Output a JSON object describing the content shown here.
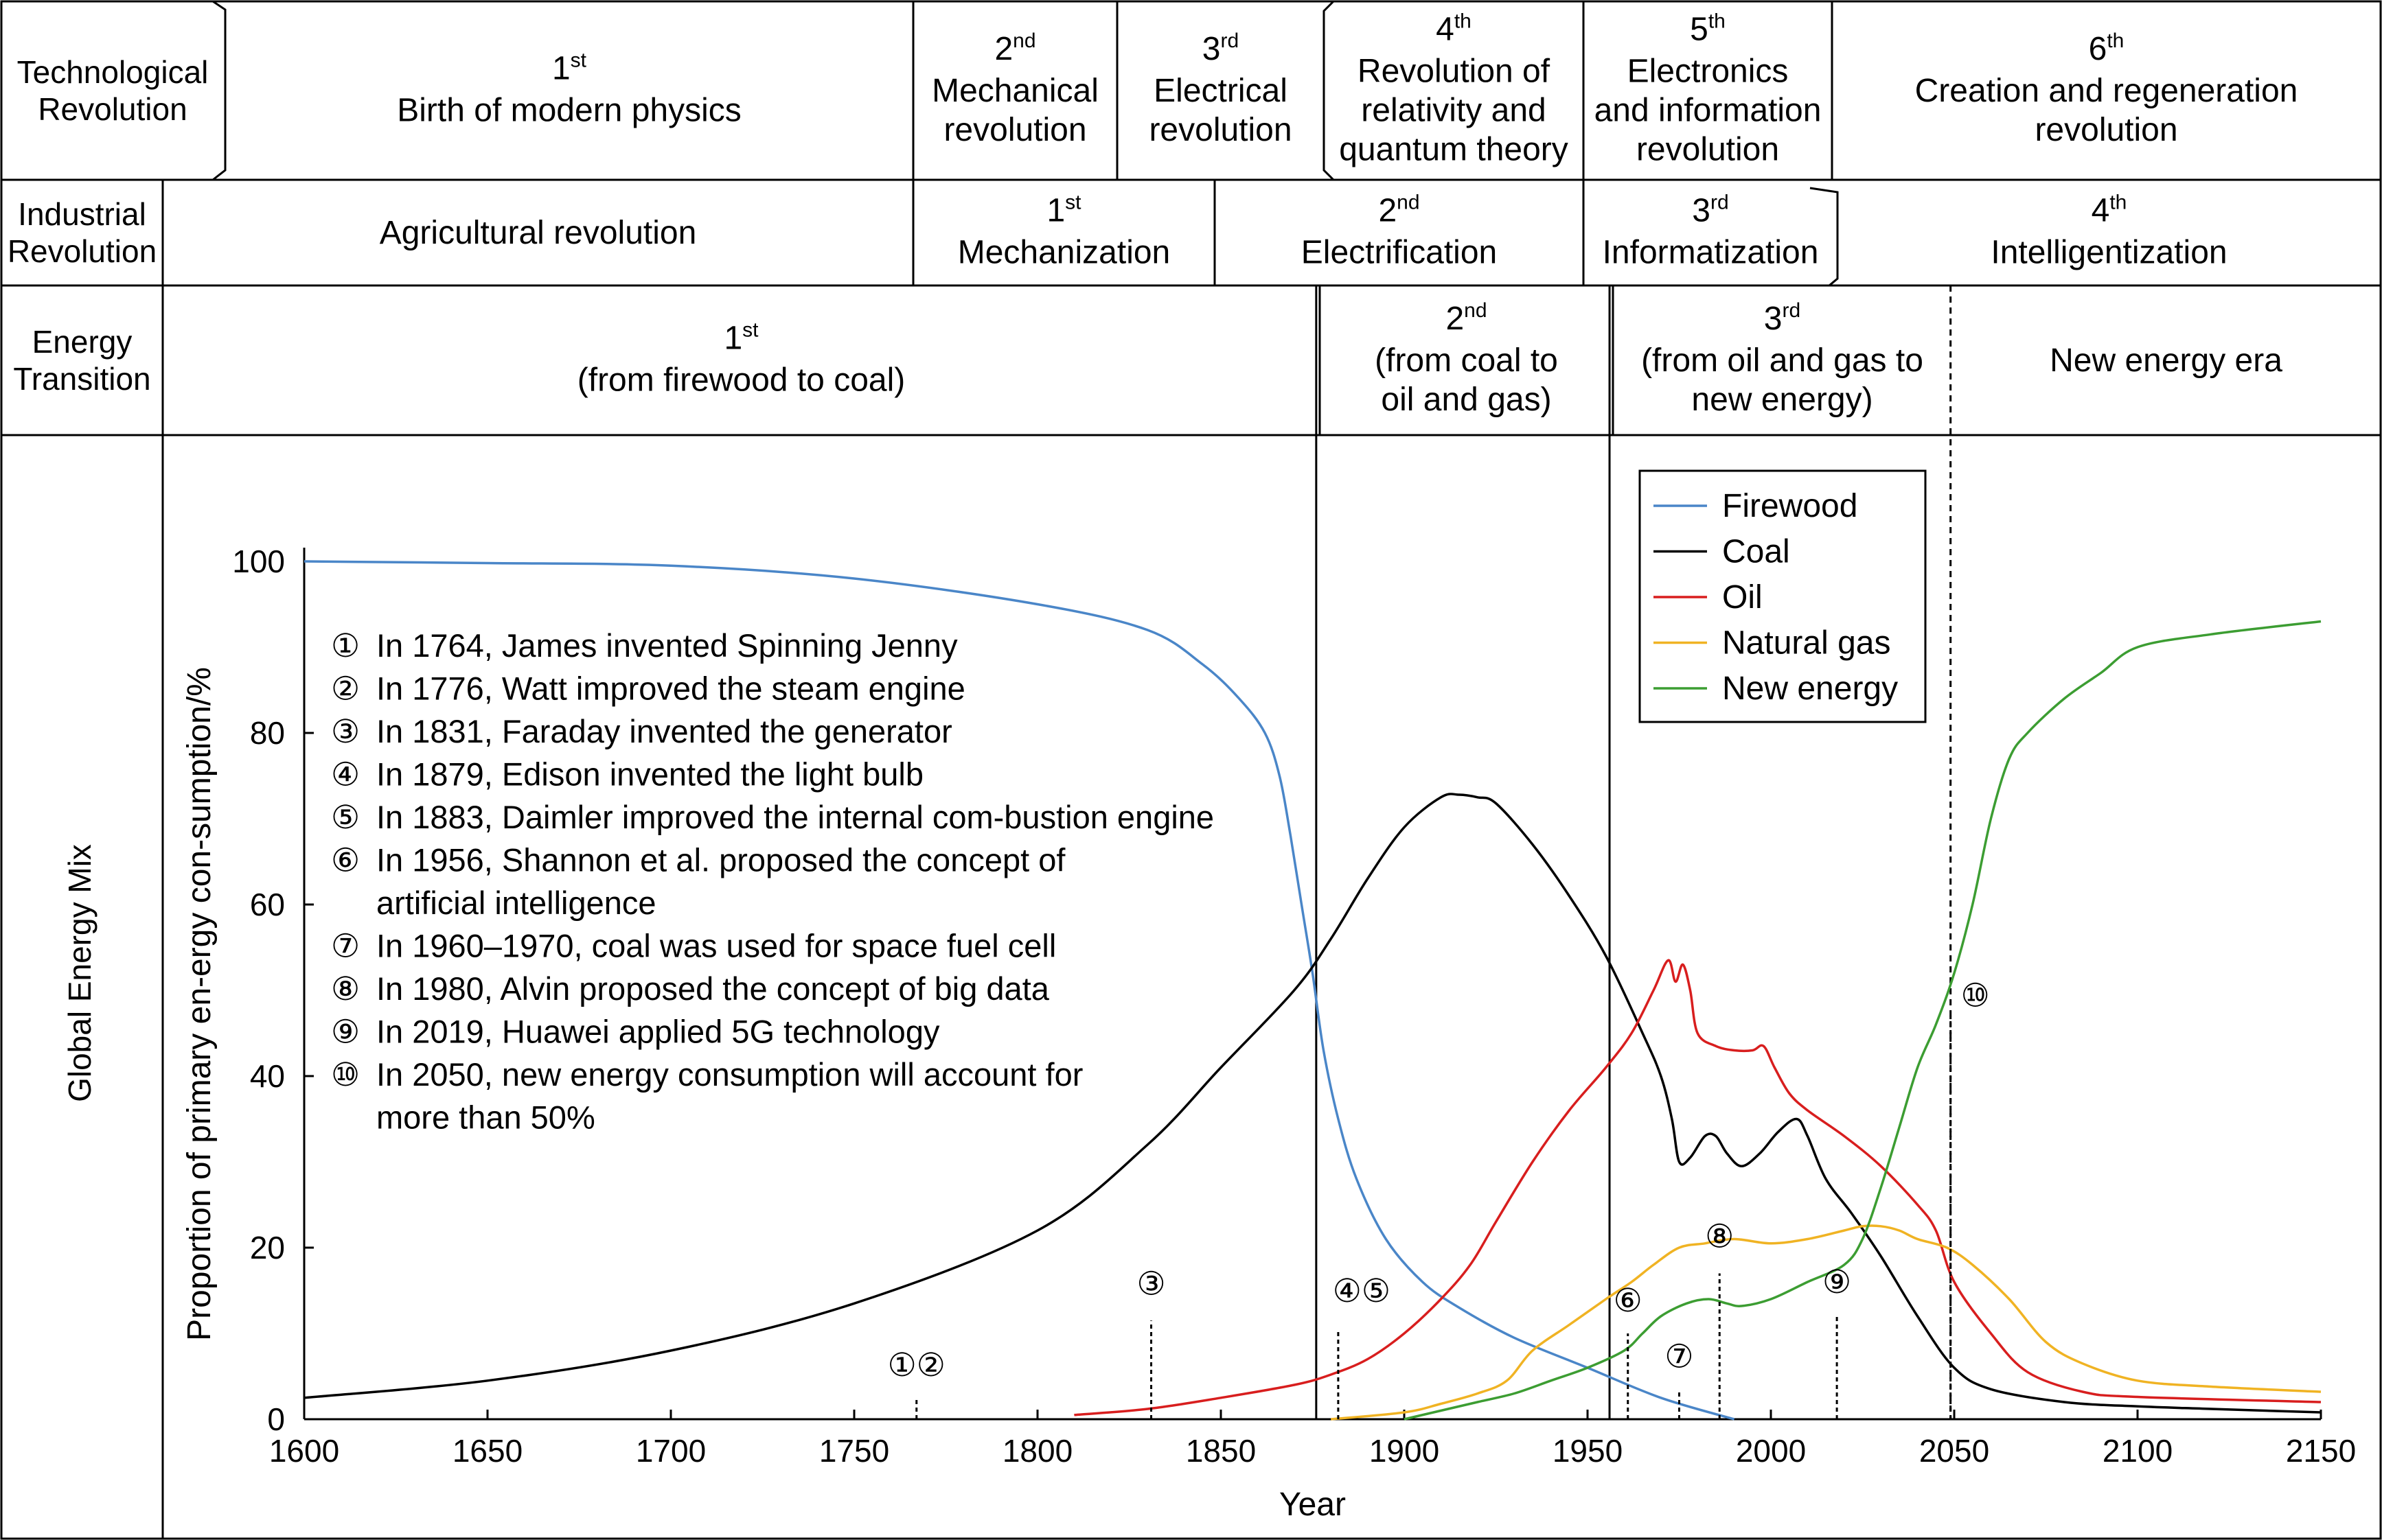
{
  "table": {
    "rows": [
      {
        "label": [
          "Technological",
          "Revolution"
        ],
        "cells": [
          {
            "ord": "1",
            "sup": "st",
            "lines": [
              "Birth of modern physics"
            ]
          },
          {
            "ord": "2",
            "sup": "nd",
            "lines": [
              "Mechanical",
              "revolution"
            ]
          },
          {
            "ord": "3",
            "sup": "rd",
            "lines": [
              "Electrical",
              "revolution"
            ]
          },
          {
            "ord": "4",
            "sup": "th",
            "lines": [
              "Revolution of",
              "relativity and",
              "quantum theory"
            ]
          },
          {
            "ord": "5",
            "sup": "th",
            "lines": [
              "Electronics",
              "and information",
              "revolution"
            ]
          },
          {
            "ord": "6",
            "sup": "th",
            "lines": [
              "Creation and regeneration",
              "revolution"
            ]
          }
        ]
      },
      {
        "label": [
          "Industrial",
          "Revolution"
        ],
        "cells": [
          {
            "ord": "",
            "sup": "",
            "lines": [
              "Agricultural revolution"
            ]
          },
          {
            "ord": "1",
            "sup": "st",
            "lines": [
              "Mechanization"
            ]
          },
          {
            "ord": "2",
            "sup": "nd",
            "lines": [
              "Electrification"
            ]
          },
          {
            "ord": "3",
            "sup": "rd",
            "lines": [
              "Informatization"
            ]
          },
          {
            "ord": "4",
            "sup": "th",
            "lines": [
              "Intelligentization"
            ]
          }
        ]
      },
      {
        "label": [
          "Energy",
          "Transition"
        ],
        "cells": [
          {
            "ord": "1",
            "sup": "st",
            "lines": [
              "(from firewood to coal)"
            ]
          },
          {
            "ord": "2",
            "sup": "nd",
            "lines": [
              "(from coal to",
              "oil and gas)"
            ]
          },
          {
            "ord": "3",
            "sup": "rd",
            "lines": [
              "(from oil and gas to",
              "new energy)"
            ]
          },
          {
            "ord": "",
            "sup": "",
            "lines": [
              "New energy era"
            ]
          }
        ]
      }
    ],
    "chart_row_label": "Global Energy Mix"
  },
  "chart_data": {
    "type": "line",
    "xlabel": "Year",
    "ylabel": "Proportion of primary en-ergy con-sumption/%",
    "xlim": [
      1600,
      2150
    ],
    "ylim": [
      0,
      100
    ],
    "xticks": [
      1600,
      1650,
      1700,
      1750,
      1800,
      1850,
      1900,
      1950,
      2000,
      2050,
      2100,
      2150
    ],
    "yticks": [
      0,
      20,
      40,
      60,
      80,
      100
    ],
    "vlines_solid": [
      1876,
      1956
    ],
    "vline_dashed": 2049,
    "series": [
      {
        "name": "Firewood",
        "color": "#4a86c8",
        "points": [
          [
            1600,
            100
          ],
          [
            1650,
            99.8
          ],
          [
            1700,
            99.5
          ],
          [
            1750,
            98
          ],
          [
            1800,
            95
          ],
          [
            1830,
            92
          ],
          [
            1845,
            88
          ],
          [
            1855,
            84
          ],
          [
            1862,
            80
          ],
          [
            1866,
            75
          ],
          [
            1869,
            68
          ],
          [
            1872,
            60
          ],
          [
            1875,
            52
          ],
          [
            1878,
            43
          ],
          [
            1882,
            35
          ],
          [
            1887,
            28
          ],
          [
            1895,
            21
          ],
          [
            1905,
            16
          ],
          [
            1915,
            13
          ],
          [
            1930,
            9.5
          ],
          [
            1950,
            6
          ],
          [
            1970,
            2.5
          ],
          [
            1990,
            0
          ]
        ]
      },
      {
        "name": "Coal",
        "color": "#000000",
        "points": [
          [
            1600,
            2.5
          ],
          [
            1650,
            4.5
          ],
          [
            1700,
            8
          ],
          [
            1750,
            13.5
          ],
          [
            1800,
            22
          ],
          [
            1830,
            32
          ],
          [
            1850,
            41
          ],
          [
            1870,
            50
          ],
          [
            1880,
            56
          ],
          [
            1890,
            63
          ],
          [
            1900,
            69
          ],
          [
            1910,
            72.5
          ],
          [
            1915,
            72.8
          ],
          [
            1920,
            72.5
          ],
          [
            1925,
            71.8
          ],
          [
            1935,
            67
          ],
          [
            1945,
            61
          ],
          [
            1955,
            54
          ],
          [
            1965,
            45
          ],
          [
            1970,
            40
          ],
          [
            1973,
            35
          ],
          [
            1975,
            30
          ],
          [
            1978,
            30.5
          ],
          [
            1982,
            33
          ],
          [
            1985,
            33
          ],
          [
            1988,
            31
          ],
          [
            1992,
            29.5
          ],
          [
            1997,
            31
          ],
          [
            2002,
            33.5
          ],
          [
            2007,
            35
          ],
          [
            2010,
            33
          ],
          [
            2015,
            28
          ],
          [
            2022,
            24
          ],
          [
            2030,
            19
          ],
          [
            2040,
            12
          ],
          [
            2050,
            6
          ],
          [
            2060,
            3.5
          ],
          [
            2080,
            2
          ],
          [
            2100,
            1.5
          ],
          [
            2120,
            1.2
          ],
          [
            2150,
            0.8
          ]
        ]
      },
      {
        "name": "Oil",
        "color": "#d81e1e",
        "points": [
          [
            1810,
            0.5
          ],
          [
            1830,
            1.2
          ],
          [
            1850,
            2.5
          ],
          [
            1870,
            4
          ],
          [
            1880,
            5.2
          ],
          [
            1890,
            7
          ],
          [
            1900,
            10
          ],
          [
            1910,
            14
          ],
          [
            1918,
            18
          ],
          [
            1925,
            23
          ],
          [
            1935,
            30
          ],
          [
            1945,
            36
          ],
          [
            1955,
            41
          ],
          [
            1962,
            45
          ],
          [
            1968,
            50
          ],
          [
            1972,
            53.5
          ],
          [
            1974,
            51
          ],
          [
            1976,
            53
          ],
          [
            1978,
            50
          ],
          [
            1980,
            45
          ],
          [
            1985,
            43.5
          ],
          [
            1990,
            43
          ],
          [
            1995,
            43
          ],
          [
            1998,
            43.5
          ],
          [
            2001,
            41
          ],
          [
            2005,
            38
          ],
          [
            2010,
            36
          ],
          [
            2020,
            33
          ],
          [
            2030,
            29.5
          ],
          [
            2040,
            25
          ],
          [
            2045,
            22
          ],
          [
            2050,
            16
          ],
          [
            2060,
            10
          ],
          [
            2070,
            5.5
          ],
          [
            2085,
            3.2
          ],
          [
            2100,
            2.6
          ],
          [
            2150,
            2
          ]
        ]
      },
      {
        "name": "Natural gas",
        "color": "#f0b323",
        "points": [
          [
            1880,
            0
          ],
          [
            1900,
            0.8
          ],
          [
            1910,
            1.8
          ],
          [
            1920,
            3
          ],
          [
            1928,
            4.5
          ],
          [
            1935,
            8
          ],
          [
            1945,
            11
          ],
          [
            1955,
            14
          ],
          [
            1962,
            16
          ],
          [
            1968,
            18
          ],
          [
            1975,
            20
          ],
          [
            1982,
            20.5
          ],
          [
            1990,
            21
          ],
          [
            2000,
            20.5
          ],
          [
            2010,
            21
          ],
          [
            2020,
            22
          ],
          [
            2025,
            22.5
          ],
          [
            2030,
            22.5
          ],
          [
            2035,
            22
          ],
          [
            2040,
            21
          ],
          [
            2048,
            20
          ],
          [
            2055,
            18
          ],
          [
            2065,
            14
          ],
          [
            2075,
            9
          ],
          [
            2085,
            6.5
          ],
          [
            2100,
            4.5
          ],
          [
            2120,
            3.8
          ],
          [
            2150,
            3.2
          ]
        ]
      },
      {
        "name": "New energy",
        "color": "#3c9d32",
        "points": [
          [
            1900,
            0
          ],
          [
            1910,
            1
          ],
          [
            1920,
            2
          ],
          [
            1930,
            3
          ],
          [
            1940,
            4.5
          ],
          [
            1950,
            6
          ],
          [
            1960,
            8
          ],
          [
            1965,
            10
          ],
          [
            1970,
            12
          ],
          [
            1977,
            13.5
          ],
          [
            1983,
            14
          ],
          [
            1988,
            13.5
          ],
          [
            1992,
            13.2
          ],
          [
            2000,
            14
          ],
          [
            2010,
            16
          ],
          [
            2020,
            18
          ],
          [
            2025,
            21
          ],
          [
            2030,
            27
          ],
          [
            2035,
            34
          ],
          [
            2040,
            41
          ],
          [
            2045,
            46
          ],
          [
            2050,
            52
          ],
          [
            2055,
            60
          ],
          [
            2060,
            70
          ],
          [
            2065,
            77
          ],
          [
            2070,
            80
          ],
          [
            2080,
            84
          ],
          [
            2090,
            87
          ],
          [
            2100,
            90
          ],
          [
            2120,
            91.5
          ],
          [
            2150,
            93
          ]
        ]
      }
    ],
    "markers": [
      {
        "label": "①②",
        "x": 1767,
        "ytop": 2.5
      },
      {
        "label": "③",
        "x": 1831,
        "ytop": 11.5
      },
      {
        "label": "④⑤",
        "x": 1882,
        "ytop": 10.5
      },
      {
        "label": "⑥",
        "x": 1961,
        "ytop": 10
      },
      {
        "label": "⑦",
        "x": 1975,
        "ytop": 3.5
      },
      {
        "label": "⑧",
        "x": 1986,
        "ytop": 17
      },
      {
        "label": "⑨",
        "x": 2018,
        "ytop": 12
      },
      {
        "label": "⑩",
        "x": 2049,
        "ytop": 47
      }
    ],
    "annotations": [
      [
        "①",
        "In 1764, James invented Spinning Jenny"
      ],
      [
        "②",
        "In 1776, Watt improved the steam engine"
      ],
      [
        "③",
        "In 1831, Faraday invented the generator"
      ],
      [
        "④",
        "In 1879, Edison invented the light bulb"
      ],
      [
        "⑤",
        "In 1883, Daimler improved the internal com-bustion engine"
      ],
      [
        "⑥",
        "In 1956, Shannon et al. proposed the concept of",
        "artificial intelligence"
      ],
      [
        "⑦",
        "In 1960–1970, coal was used for space fuel cell"
      ],
      [
        "⑧",
        "In 1980, Alvin proposed the concept of big data"
      ],
      [
        "⑨",
        "In 2019, Huawei applied 5G technology"
      ],
      [
        "⑩",
        "In 2050, new energy consumption will account for",
        "more than 50%"
      ]
    ]
  }
}
